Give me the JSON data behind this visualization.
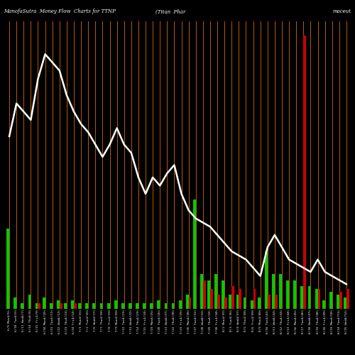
{
  "title_left": "ManofaSutra  Money Flow  Charts for TTNP",
  "title_center": "(Titan  Phar",
  "title_right": "maceut",
  "background_color": "#000000",
  "bar_color_green": "#00cc00",
  "bar_color_red": "#cc0000",
  "line_color": "#ffffff",
  "separator_color": "#cc6600",
  "dates": [
    "6/9 Mon4/5%",
    "6/10 Tue4/6%",
    "6/11 Wed4/7%",
    "6/14 Thu4/8%",
    "6/15 Fri4/9%",
    "6/18 Mon4/10%",
    "6/21 Tue4/11%",
    "6/22 Wed4/12%",
    "6/23 Thu4/13%",
    "6/24 Fri4/14%",
    "7/1 Mon4/15%",
    "7/2 Tue4/16%",
    "7/6 Wed4/17%",
    "7/7 Thu4/18%",
    "7/8 Fri4/19%",
    "7/9 Mon4/20%",
    "7/12 Tue4/21%",
    "7/13 Wed4/22%",
    "7/14 Thu4/23%",
    "7/15 Fri4/24%",
    "7/19 Mon4/25%",
    "7/20 Tue4/26%",
    "7/21 Wed4/27%",
    "7/22 Thu4/28%",
    "7/23 Fri4/29%",
    "7/26 Mon4/30%",
    "7/27 Tue4/31%",
    "7/28 Wed4/32%",
    "7/29 Thu4/33%",
    "7/30 Fri4/34%",
    "8/2 Mon4/35%",
    "8/3 Tue4/36%",
    "8/4 Wed4/37%",
    "8/5 Thu4/38%",
    "8/6 Fri4/39%",
    "8/9 Mon4/40%",
    "8/10 Tue4/41%",
    "8/11 Wed4/42%",
    "8/12 Thu4/43%",
    "8/13 Fri4/44%",
    "8/16 Mon4/45%",
    "8/17 Tue4/46%",
    "8/18 Wed4/47%",
    "8/19 Thu4/48%",
    "8/20 Fri4/49%",
    "8/23 Mon4/50%",
    "8/24 Tue4/51%",
    "8/25 Wed4/52%"
  ],
  "green_bars": [
    28,
    4,
    2,
    5,
    2,
    4,
    2,
    3,
    2,
    3,
    2,
    2,
    2,
    2,
    2,
    3,
    2,
    2,
    2,
    2,
    2,
    3,
    2,
    2,
    3,
    5,
    38,
    12,
    10,
    12,
    10,
    5,
    5,
    4,
    3,
    4,
    20,
    12,
    12,
    10,
    10,
    8,
    8,
    7,
    3,
    6,
    5,
    4
  ],
  "red_bars": [
    0,
    0,
    0,
    0,
    2,
    0,
    0,
    2,
    0,
    2,
    0,
    0,
    0,
    0,
    0,
    0,
    0,
    0,
    0,
    0,
    0,
    0,
    0,
    0,
    0,
    4,
    0,
    10,
    7,
    5,
    4,
    8,
    7,
    0,
    7,
    0,
    5,
    5,
    0,
    0,
    0,
    95,
    0,
    7,
    0,
    0,
    6,
    7
  ],
  "price_line": [
    62,
    70,
    68,
    66,
    76,
    82,
    80,
    78,
    72,
    68,
    65,
    63,
    60,
    57,
    60,
    64,
    60,
    58,
    52,
    48,
    52,
    50,
    53,
    55,
    48,
    44,
    42,
    41,
    40,
    38,
    36,
    34,
    33,
    32,
    30,
    28,
    35,
    38,
    35,
    32,
    31,
    30,
    29,
    32,
    29,
    28,
    27,
    26
  ],
  "bar_ylim": [
    0,
    100
  ],
  "price_ylim": [
    20,
    90
  ],
  "n_bars": 48
}
